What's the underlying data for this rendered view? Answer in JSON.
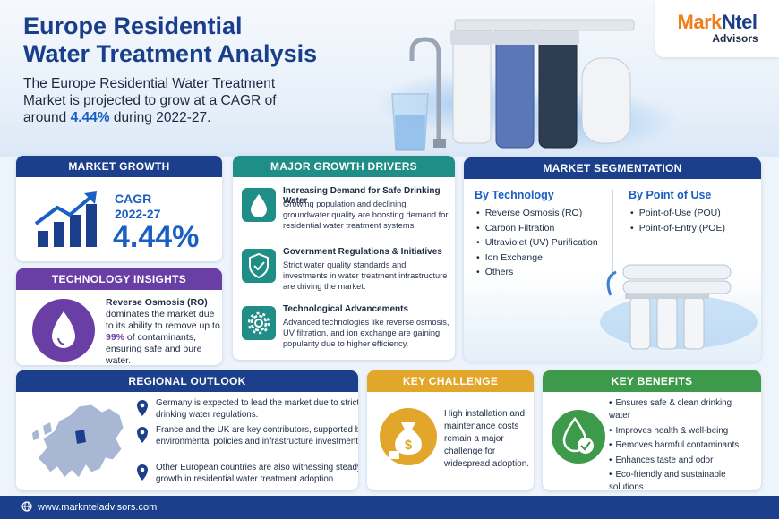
{
  "header": {
    "title_line1": "Europe Residential",
    "title_line2": "Water Treatment Analysis",
    "subtitle_before": "The Europe Residential Water Treatment Market is projected to grow at a CAGR of around ",
    "subtitle_highlight": "4.44%",
    "subtitle_after": " during 2022-27."
  },
  "logo": {
    "name_part1": "Mark",
    "name_part2": "Ntel",
    "sub": "Advisors"
  },
  "market_growth": {
    "heading": "MARKET GROWTH",
    "cagr_label": "CAGR",
    "period": "2022-27",
    "value": "4.44%",
    "icon": "bar-chart-growth-icon"
  },
  "technology_insights": {
    "heading": "TECHNOLOGY INSIGHTS",
    "bold_lead": "Reverse Osmosis (RO)",
    "text_part1": " dominates the market due to its ability to remove up to ",
    "highlight": "99%",
    "text_part2": " of contaminants, ensuring safe and pure water.",
    "icon": "water-drop-icon"
  },
  "growth_drivers": {
    "heading": "MAJOR GROWTH DRIVERS",
    "items": [
      {
        "title": "Increasing Demand for Safe Drinking Water",
        "text": "Growing population and declining groundwater quality are boosting demand for residential water treatment systems.",
        "icon": "water-drop-icon"
      },
      {
        "title": "Government Regulations & Initiatives",
        "text": "Strict water quality standards and investments in water treatment infrastructure are driving the market.",
        "icon": "shield-check-icon"
      },
      {
        "title": "Technological Advancements",
        "text": "Advanced technologies like reverse osmosis, UV filtration, and ion exchange are gaining popularity due to higher efficiency.",
        "icon": "gear-icon"
      }
    ]
  },
  "segmentation": {
    "heading": "MARKET SEGMENTATION",
    "technology": {
      "title": "By Technology",
      "items": [
        "Reverse Osmosis (RO)",
        "Carbon Filtration",
        "Ultraviolet (UV) Purification",
        "Ion Exchange",
        "Others"
      ]
    },
    "point_of_use": {
      "title": "By Point of Use",
      "items": [
        "Point-of-Use (POU)",
        "Point-of-Entry (POE)"
      ]
    }
  },
  "regional": {
    "heading": "REGIONAL OUTLOOK",
    "items": [
      "Germany is expected to lead the market due to strict drinking water regulations.",
      "France and the UK are key contributors, supported by environmental policies and infrastructure investments.",
      "Other European countries are also witnessing steady growth in residential water treatment adoption."
    ],
    "icon": "map-pin-icon"
  },
  "key_challenge": {
    "heading": "KEY CHALLENGE",
    "text": "High installation and maintenance costs remain a major challenge for widespread adoption.",
    "icon": "money-bag-icon"
  },
  "key_benefits": {
    "heading": "KEY BENEFITS",
    "items": [
      "Ensures safe & clean drinking water",
      "Improves health & well-being",
      "Removes harmful contaminants",
      "Enhances taste and odor",
      "Eco-friendly and sustainable solutions"
    ],
    "icon": "drop-check-icon"
  },
  "footer": {
    "url": "www.marknteladvisors.com",
    "icon": "globe-icon"
  },
  "colors": {
    "navy": "#1c3f8c",
    "purple": "#6a3fa5",
    "teal": "#1f8e86",
    "gold": "#e2a62a",
    "green": "#3d9a4a",
    "accent_blue": "#1a5fc2",
    "logo_orange": "#ef7d1a"
  }
}
